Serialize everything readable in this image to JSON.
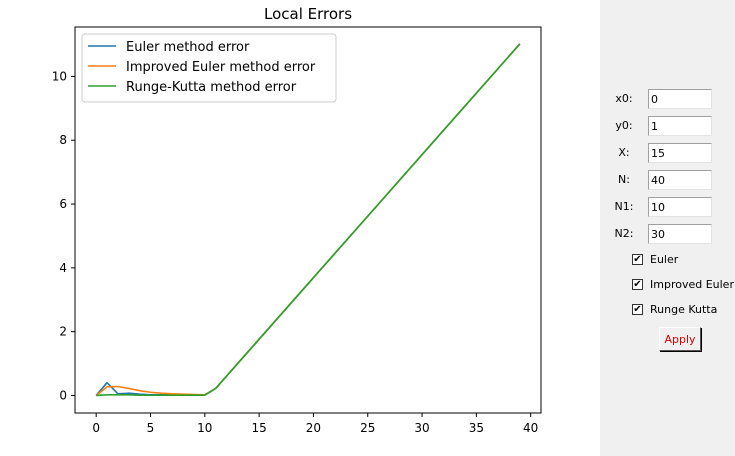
{
  "chart_data": {
    "type": "line",
    "title": "Local Errors",
    "xlabel": "",
    "ylabel": "",
    "xlim": [
      -1.95,
      40.95
    ],
    "ylim": [
      -0.55,
      11.55
    ],
    "xticks": [
      0,
      5,
      10,
      15,
      20,
      25,
      30,
      35,
      40
    ],
    "yticks": [
      0,
      2,
      4,
      6,
      8,
      10
    ],
    "legend_position": "top-left",
    "grid": false,
    "series": [
      {
        "name": "Euler method error",
        "color": "#1f77b4",
        "x": [
          0,
          1,
          2,
          3,
          4,
          5,
          6,
          7,
          8,
          9,
          10,
          11,
          39
        ],
        "y": [
          0,
          0.4,
          0.05,
          0.07,
          0.04,
          0.02,
          0.02,
          0.02,
          0.02,
          0.01,
          0.02,
          0.22,
          11.02
        ]
      },
      {
        "name": "Improved Euler method error",
        "color": "#ff7f0e",
        "x": [
          0,
          1,
          2,
          3,
          4,
          5,
          6,
          7,
          8,
          9,
          10,
          11,
          39
        ],
        "y": [
          0,
          0.27,
          0.28,
          0.22,
          0.15,
          0.1,
          0.07,
          0.05,
          0.04,
          0.03,
          0.02,
          0.22,
          11.02
        ]
      },
      {
        "name": "Runge-Kutta method error",
        "color": "#2ca02c",
        "x": [
          0,
          1,
          2,
          3,
          4,
          5,
          6,
          7,
          8,
          9,
          10,
          11,
          39
        ],
        "y": [
          0,
          0.02,
          0.02,
          0.02,
          0.01,
          0.01,
          0.01,
          0.01,
          0.01,
          0.01,
          0.01,
          0.22,
          11.02
        ]
      }
    ]
  },
  "panel": {
    "fields": [
      {
        "label": "x0:",
        "value": "0"
      },
      {
        "label": "y0:",
        "value": "1"
      },
      {
        "label": "X:",
        "value": "15"
      },
      {
        "label": "N:",
        "value": "40"
      },
      {
        "label": "N1:",
        "value": "10"
      },
      {
        "label": "N2:",
        "value": "30"
      }
    ],
    "checkboxes": [
      {
        "label": "Euler",
        "checked": true
      },
      {
        "label": "Improved Euler",
        "checked": true
      },
      {
        "label": "Runge Kutta",
        "checked": true
      }
    ],
    "apply_label": "Apply",
    "check_glyph": "✔"
  }
}
